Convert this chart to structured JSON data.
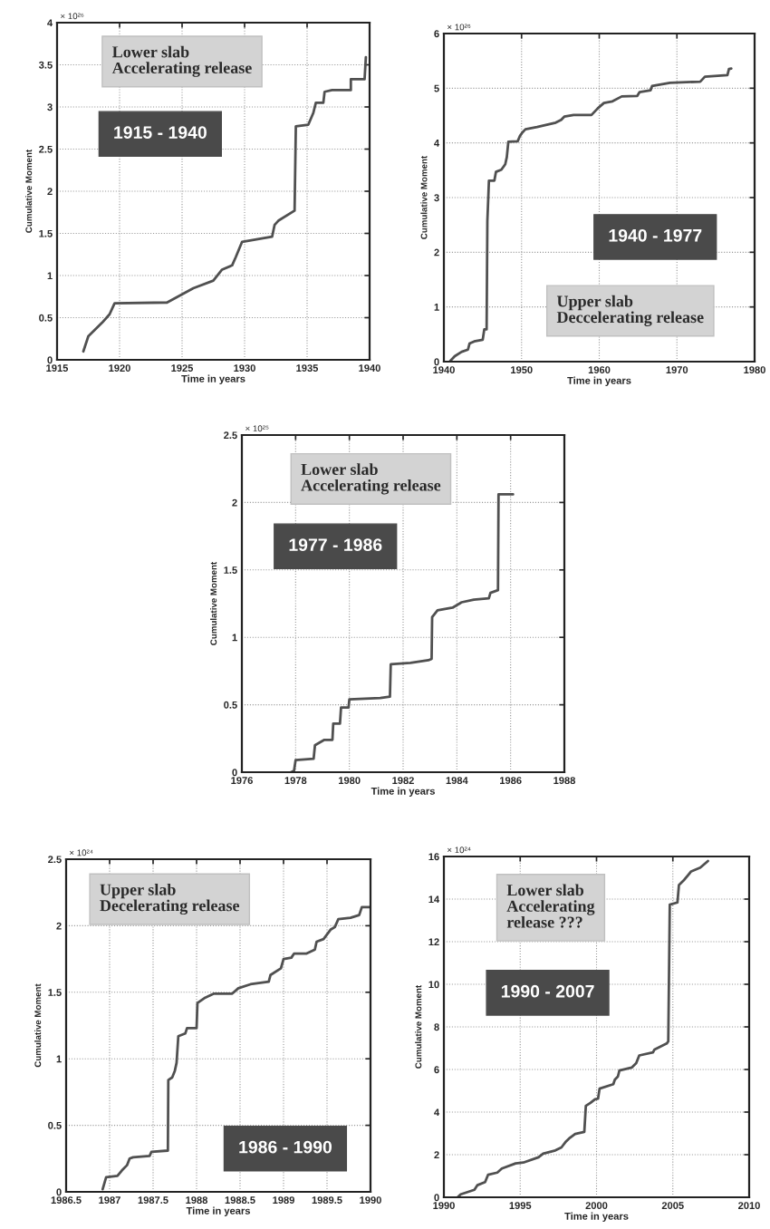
{
  "chart_data": [
    {
      "type": "line",
      "xlabel": "Time in years",
      "ylabel": "Cumulative Moment",
      "annotations": [
        "× 10²⁶",
        "Lower slab\nAccelerating release",
        "1915 - 1940"
      ],
      "xlim": [
        1915,
        1940
      ],
      "ylim": [
        0,
        4
      ],
      "xticks": [
        1915,
        1920,
        1925,
        1930,
        1935,
        1940
      ],
      "yticks": [
        0,
        0.5,
        1,
        1.5,
        2,
        2.5,
        3,
        3.5,
        4
      ],
      "grid": true,
      "x": [
        1917.1,
        1917.5,
        1918.6,
        1919.2,
        1919.6,
        1923.8,
        1925.9,
        1927.5,
        1928.2,
        1929.0,
        1929.3,
        1929.8,
        1932.2,
        1932.4,
        1932.7,
        1934.0,
        1934.1,
        1935.1,
        1935.5,
        1935.7,
        1936.3,
        1936.4,
        1937.0,
        1938.5,
        1938.5,
        1939.6,
        1939.7
      ],
      "series": [
        {
          "color": "#505050",
          "values": [
            0.1,
            0.28,
            0.44,
            0.54,
            0.67,
            0.68,
            0.85,
            0.94,
            1.07,
            1.12,
            1.22,
            1.4,
            1.46,
            1.6,
            1.65,
            1.77,
            2.77,
            2.79,
            2.93,
            3.05,
            3.05,
            3.18,
            3.2,
            3.2,
            3.33,
            3.33,
            3.59
          ]
        }
      ]
    },
    {
      "type": "line",
      "xlabel": "Time in years",
      "ylabel": "Cumulative Moment",
      "annotations": [
        "× 10²⁶",
        "Upper slab\nDeccelerating release",
        "1940 - 1977"
      ],
      "xlim": [
        1940,
        1980
      ],
      "ylim": [
        0,
        6
      ],
      "xticks": [
        1940,
        1950,
        1960,
        1970,
        1980
      ],
      "yticks": [
        0,
        1,
        2,
        3,
        4,
        5,
        6
      ],
      "grid": true,
      "x": [
        1940.8,
        1941.4,
        1942.3,
        1943.1,
        1943.3,
        1943.9,
        1945.0,
        1945.2,
        1945.5,
        1945.6,
        1945.8,
        1946.5,
        1946.7,
        1947.4,
        1947.9,
        1948.1,
        1948.3,
        1949.5,
        1949.8,
        1950.1,
        1950.5,
        1952.0,
        1954.4,
        1955.1,
        1955.5,
        1956.7,
        1959.0,
        1959.8,
        1960.6,
        1961.7,
        1962.9,
        1964.9,
        1965.2,
        1966.6,
        1966.8,
        1969.1,
        1973.0,
        1973.6,
        1976.5,
        1976.7,
        1977.0
      ],
      "series": [
        {
          "color": "#505050",
          "values": [
            0.01,
            0.1,
            0.18,
            0.22,
            0.33,
            0.37,
            0.4,
            0.59,
            0.59,
            2.58,
            3.31,
            3.31,
            3.47,
            3.51,
            3.61,
            3.74,
            4.02,
            4.03,
            4.13,
            4.19,
            4.25,
            4.29,
            4.37,
            4.42,
            4.48,
            4.51,
            4.51,
            4.63,
            4.73,
            4.76,
            4.85,
            4.86,
            4.93,
            4.96,
            5.04,
            5.1,
            5.12,
            5.21,
            5.24,
            5.35,
            5.36
          ]
        }
      ]
    },
    {
      "type": "line",
      "xlabel": "Time in years",
      "ylabel": "Cumulative Moment",
      "annotations": [
        "× 10²⁵",
        "Lower slab\nAccelerating release",
        "1977 - 1986"
      ],
      "xlim": [
        1976,
        1988
      ],
      "ylim": [
        0,
        2.5
      ],
      "xticks": [
        1976,
        1978,
        1980,
        1982,
        1984,
        1986,
        1988
      ],
      "yticks": [
        0,
        0.5,
        1,
        1.5,
        2,
        2.5
      ],
      "grid": true,
      "x": [
        1977.83,
        1977.94,
        1978.0,
        1978.67,
        1978.72,
        1979.07,
        1979.37,
        1979.4,
        1979.65,
        1979.69,
        1979.97,
        1980.0,
        1981.15,
        1981.51,
        1981.54,
        1982.27,
        1982.94,
        1983.06,
        1983.08,
        1983.28,
        1983.84,
        1984.18,
        1984.63,
        1985.19,
        1985.25,
        1985.53,
        1985.55,
        1986.09
      ],
      "series": [
        {
          "color": "#505050",
          "values": [
            0.0,
            0.01,
            0.09,
            0.1,
            0.2,
            0.24,
            0.24,
            0.36,
            0.36,
            0.48,
            0.48,
            0.54,
            0.55,
            0.56,
            0.8,
            0.81,
            0.83,
            0.84,
            1.15,
            1.2,
            1.22,
            1.26,
            1.28,
            1.29,
            1.33,
            1.35,
            2.06,
            2.06
          ]
        }
      ]
    },
    {
      "type": "line",
      "xlabel": "Time in years",
      "ylabel": "Cumulative Moment",
      "annotations": [
        "× 10²⁴",
        "Upper slab\nDecelerating release",
        "1986 - 1990"
      ],
      "xlim": [
        1986.5,
        1990
      ],
      "ylim": [
        0,
        2.5
      ],
      "xticks": [
        1986.5,
        1987,
        1987.5,
        1988,
        1988.5,
        1989,
        1989.5,
        1990
      ],
      "yticks": [
        0,
        0.5,
        1,
        1.5,
        2,
        2.5
      ],
      "grid": true,
      "x": [
        1986.92,
        1986.96,
        1987.09,
        1987.14,
        1987.2,
        1987.23,
        1987.27,
        1987.46,
        1987.48,
        1987.67,
        1987.675,
        1987.72,
        1987.75,
        1987.77,
        1987.79,
        1987.87,
        1987.89,
        1988.0,
        1988.01,
        1988.1,
        1988.2,
        1988.41,
        1988.48,
        1988.62,
        1988.83,
        1988.85,
        1988.97,
        1989.0,
        1989.09,
        1989.12,
        1989.26,
        1989.36,
        1989.38,
        1989.46,
        1989.54,
        1989.59,
        1989.63,
        1989.77,
        1989.87,
        1989.9,
        1989.99
      ],
      "series": [
        {
          "color": "#505050",
          "values": [
            0.02,
            0.11,
            0.12,
            0.16,
            0.2,
            0.25,
            0.26,
            0.27,
            0.3,
            0.31,
            0.84,
            0.86,
            0.91,
            0.97,
            1.17,
            1.19,
            1.23,
            1.23,
            1.42,
            1.46,
            1.49,
            1.49,
            1.53,
            1.56,
            1.58,
            1.63,
            1.68,
            1.75,
            1.76,
            1.79,
            1.79,
            1.82,
            1.88,
            1.9,
            1.97,
            1.99,
            2.05,
            2.06,
            2.08,
            2.14,
            2.14
          ]
        }
      ]
    },
    {
      "type": "line",
      "xlabel": "Time in years",
      "ylabel": "Cumulative Moment",
      "annotations": [
        "× 10²⁴",
        "Lower slab\nAccelerating\nrelease ???",
        "1990 - 2007"
      ],
      "xlim": [
        1990,
        2010
      ],
      "ylim": [
        0,
        16
      ],
      "xticks": [
        1990,
        1995,
        2000,
        2005,
        2010
      ],
      "yticks": [
        0,
        2,
        4,
        6,
        8,
        10,
        12,
        14,
        16
      ],
      "grid": true,
      "x": [
        1990.9,
        1991.1,
        1992.0,
        1992.2,
        1992.7,
        1992.9,
        1993.5,
        1993.8,
        1994.7,
        1995.2,
        1996.2,
        1996.5,
        1997.3,
        1997.7,
        1998.0,
        1998.2,
        1998.6,
        1999.2,
        1999.3,
        1999.6,
        1999.9,
        2000.1,
        2000.2,
        2001.1,
        2001.2,
        2001.4,
        2001.5,
        2002.3,
        2002.6,
        2002.8,
        2003.7,
        2003.8,
        2004.6,
        2004.7,
        2004.8,
        2005.3,
        2005.4,
        2005.7,
        2006.2,
        2006.8,
        2007.3
      ],
      "series": [
        {
          "color": "#505050",
          "values": [
            0.0,
            0.14,
            0.35,
            0.57,
            0.71,
            1.06,
            1.16,
            1.35,
            1.59,
            1.63,
            1.88,
            2.05,
            2.2,
            2.34,
            2.62,
            2.76,
            2.97,
            3.07,
            4.29,
            4.43,
            4.6,
            4.63,
            5.1,
            5.31,
            5.52,
            5.67,
            5.95,
            6.09,
            6.3,
            6.66,
            6.8,
            6.94,
            7.22,
            7.32,
            13.74,
            13.84,
            14.66,
            14.87,
            15.3,
            15.48,
            15.79
          ]
        }
      ]
    }
  ]
}
